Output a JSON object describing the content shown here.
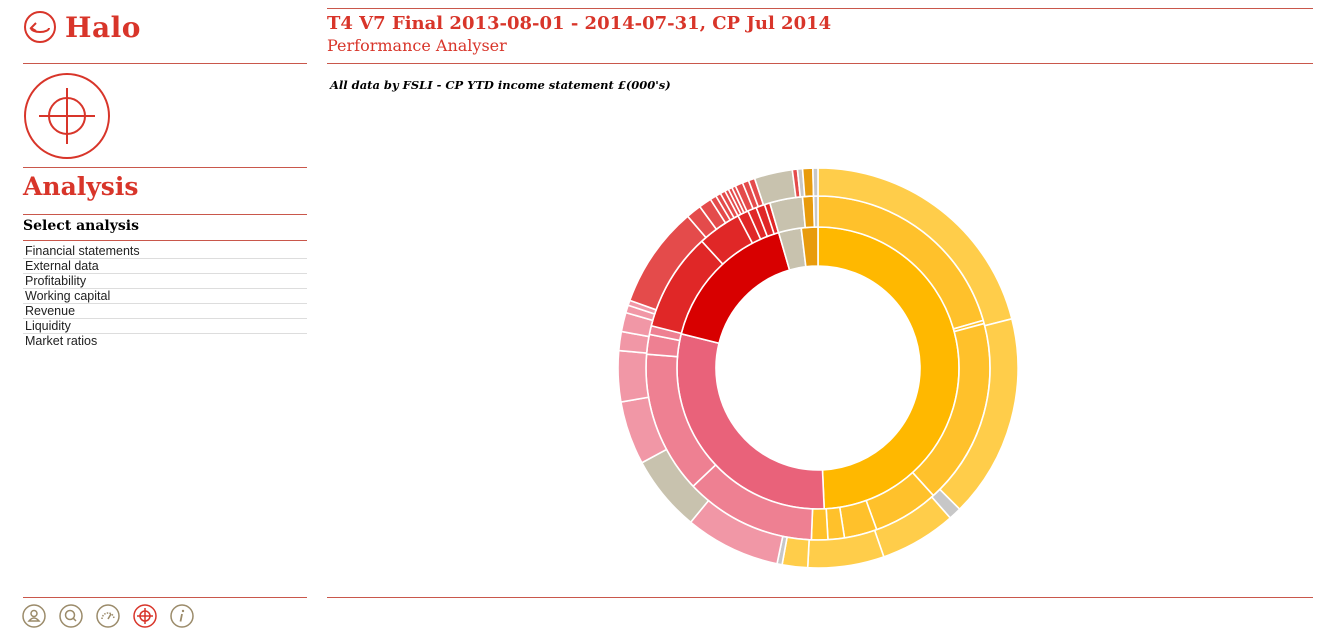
{
  "brand": {
    "name": "Halo"
  },
  "sidebar": {
    "section_title": "Analysis",
    "select_heading": "Select analysis",
    "items": [
      {
        "label": "Financial statements"
      },
      {
        "label": "External data"
      },
      {
        "label": "Profitability"
      },
      {
        "label": "Working capital"
      },
      {
        "label": "Revenue"
      },
      {
        "label": "Liquidity"
      },
      {
        "label": "Market ratios"
      }
    ],
    "bottom_icons": [
      "user-icon",
      "search-icon",
      "dashboard-icon",
      "crosshair-icon",
      "info-icon"
    ]
  },
  "header": {
    "title": "T4 V7 Final 2013-08-01 - 2014-07-31, CP Jul 2014",
    "subtitle": "Performance Analyser"
  },
  "chart": {
    "caption": "All data by FSLI - CP YTD income statement £(000's)"
  },
  "colors": {
    "accent": "#d8352a",
    "gold_inner": "#ffb800",
    "gold_mid": "#ffc12b",
    "gold_outer": "#ffcd4a",
    "red_inner": "#d80000",
    "red_mid": "#e02727",
    "red_outer": "#e44b4b",
    "pink_inner": "#e9627a",
    "pink_mid": "#ee8092",
    "pink_outer": "#f197a6",
    "taupe": "#c8c2ae",
    "orange": "#e89b0c",
    "grey": "#c7c7c7"
  },
  "chart_data": {
    "type": "sunburst",
    "unit": "£(000's)",
    "rings": [
      {
        "ring": "inner",
        "segments": [
          {
            "share": 0.493,
            "color": "gold_inner"
          },
          {
            "share": 0.296,
            "color": "pink_inner"
          },
          {
            "share": 0.166,
            "color": "red_inner"
          },
          {
            "share": 0.026,
            "color": "taupe"
          },
          {
            "share": 0.019,
            "color": "orange"
          }
        ]
      },
      {
        "ring": "middle",
        "segments": [
          {
            "share": 0.2,
            "color": "gold_mid"
          },
          {
            "share": 0.003,
            "color": "gold_mid"
          },
          {
            "share": 0.17,
            "color": "gold_mid"
          },
          {
            "share": 0.06,
            "color": "gold_mid"
          },
          {
            "share": 0.03,
            "color": "gold_mid"
          },
          {
            "share": 0.015,
            "color": "gold_mid"
          },
          {
            "share": 0.015,
            "color": "gold_mid"
          },
          {
            "share": 0.12,
            "color": "pink_mid"
          },
          {
            "share": 0.13,
            "color": "pink_mid"
          },
          {
            "share": 0.018,
            "color": "pink_mid"
          },
          {
            "share": 0.008,
            "color": "pink_mid"
          },
          {
            "share": 0.09,
            "color": "red_mid"
          },
          {
            "share": 0.04,
            "color": "red_mid"
          },
          {
            "share": 0.01,
            "color": "red_mid"
          },
          {
            "share": 0.008,
            "color": "red_mid"
          },
          {
            "share": 0.008,
            "color": "red_mid"
          },
          {
            "share": 0.005,
            "color": "red_mid"
          },
          {
            "share": 0.03,
            "color": "taupe"
          },
          {
            "share": 0.01,
            "color": "orange"
          },
          {
            "share": 0.004,
            "color": "grey"
          }
        ]
      },
      {
        "ring": "outer",
        "segments": [
          {
            "share": 0.205,
            "color": "gold_outer"
          },
          {
            "share": 0.16,
            "color": "gold_outer"
          },
          {
            "share": 0.01,
            "color": "grey"
          },
          {
            "share": 0.06,
            "color": "gold_outer"
          },
          {
            "share": 0.06,
            "color": "gold_outer"
          },
          {
            "share": 0.02,
            "color": "gold_outer"
          },
          {
            "share": 0.004,
            "color": "grey"
          },
          {
            "share": 0.075,
            "color": "pink_outer"
          },
          {
            "share": 0.06,
            "color": "taupe"
          },
          {
            "share": 0.05,
            "color": "pink_outer"
          },
          {
            "share": 0.04,
            "color": "pink_outer"
          },
          {
            "share": 0.015,
            "color": "pink_outer"
          },
          {
            "share": 0.015,
            "color": "pink_outer"
          },
          {
            "share": 0.006,
            "color": "pink_outer"
          },
          {
            "share": 0.004,
            "color": "pink_outer"
          },
          {
            "share": 0.08,
            "color": "red_outer"
          },
          {
            "share": 0.012,
            "color": "red_outer"
          },
          {
            "share": 0.01,
            "color": "red_outer"
          },
          {
            "share": 0.005,
            "color": "red_outer"
          },
          {
            "share": 0.004,
            "color": "red_outer"
          },
          {
            "share": 0.004,
            "color": "red_outer"
          },
          {
            "share": 0.003,
            "color": "red_outer"
          },
          {
            "share": 0.003,
            "color": "red_outer"
          },
          {
            "share": 0.003,
            "color": "red_outer"
          },
          {
            "share": 0.006,
            "color": "red_outer"
          },
          {
            "share": 0.005,
            "color": "red_outer"
          },
          {
            "share": 0.005,
            "color": "red_outer"
          },
          {
            "share": 0.03,
            "color": "taupe"
          },
          {
            "share": 0.004,
            "color": "red_outer"
          },
          {
            "share": 0.004,
            "color": "grey"
          },
          {
            "share": 0.008,
            "color": "orange"
          },
          {
            "share": 0.004,
            "color": "grey"
          }
        ]
      }
    ]
  }
}
